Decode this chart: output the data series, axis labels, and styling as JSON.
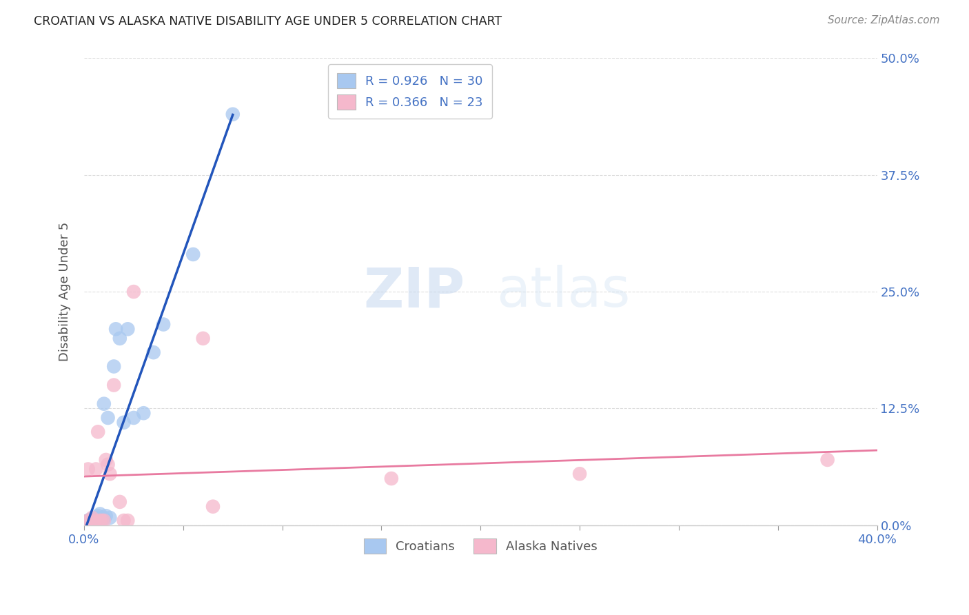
{
  "title": "CROATIAN VS ALASKA NATIVE DISABILITY AGE UNDER 5 CORRELATION CHART",
  "source": "Source: ZipAtlas.com",
  "ylabel": "Disability Age Under 5",
  "ytick_labels": [
    "0.0%",
    "12.5%",
    "25.0%",
    "37.5%",
    "50.0%"
  ],
  "ytick_values": [
    0.0,
    0.125,
    0.25,
    0.375,
    0.5
  ],
  "xlim": [
    0.0,
    0.4
  ],
  "ylim": [
    0.0,
    0.5
  ],
  "legend_r1": "R = 0.926",
  "legend_n1": "N = 30",
  "legend_r2": "R = 0.366",
  "legend_n2": "N = 23",
  "croatian_color": "#a8c8f0",
  "alaska_color": "#f5b8cc",
  "croatian_line_color": "#2255bb",
  "alaska_line_color": "#e87aa0",
  "watermark_zip": "ZIP",
  "watermark_atlas": "atlas",
  "croatians_scatter_x": [
    0.001,
    0.002,
    0.003,
    0.003,
    0.004,
    0.004,
    0.005,
    0.005,
    0.006,
    0.006,
    0.007,
    0.007,
    0.008,
    0.009,
    0.01,
    0.01,
    0.011,
    0.012,
    0.013,
    0.015,
    0.016,
    0.018,
    0.02,
    0.022,
    0.025,
    0.03,
    0.035,
    0.04,
    0.055,
    0.075
  ],
  "croatians_scatter_y": [
    0.004,
    0.005,
    0.003,
    0.006,
    0.004,
    0.005,
    0.004,
    0.006,
    0.005,
    0.007,
    0.008,
    0.01,
    0.012,
    0.005,
    0.008,
    0.13,
    0.01,
    0.115,
    0.008,
    0.17,
    0.21,
    0.2,
    0.11,
    0.21,
    0.115,
    0.12,
    0.185,
    0.215,
    0.29,
    0.44
  ],
  "alaska_scatter_x": [
    0.001,
    0.002,
    0.003,
    0.004,
    0.005,
    0.006,
    0.007,
    0.008,
    0.009,
    0.01,
    0.011,
    0.012,
    0.013,
    0.015,
    0.018,
    0.02,
    0.022,
    0.025,
    0.06,
    0.065,
    0.155,
    0.25,
    0.375
  ],
  "alaska_scatter_y": [
    0.004,
    0.06,
    0.005,
    0.008,
    0.005,
    0.06,
    0.1,
    0.005,
    0.005,
    0.005,
    0.07,
    0.065,
    0.055,
    0.15,
    0.025,
    0.005,
    0.005,
    0.25,
    0.2,
    0.02,
    0.05,
    0.055,
    0.07
  ],
  "background_color": "#ffffff",
  "grid_color": "#dddddd"
}
